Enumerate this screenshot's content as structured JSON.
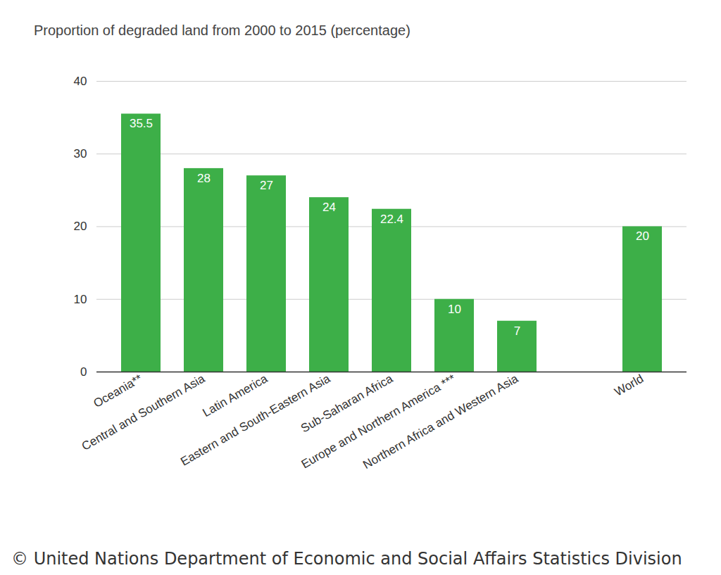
{
  "chart_data": {
    "type": "bar",
    "title": "Proportion of degraded land from 2000 to 2015 (percentage)",
    "caption": "© United Nations Department of Economic and Social Affairs Statistics Division",
    "categories": [
      "Oceania**",
      "Central and Southern Asia",
      "Latin America",
      "Eastern and South-Eastern Asia",
      "Sub-Saharan Africa",
      "Europe and Northern America ***",
      "Northern Africa and Western Asia",
      null,
      "World"
    ],
    "values": [
      35.5,
      28,
      27,
      24,
      22.4,
      10,
      7,
      null,
      20
    ],
    "color": "#3daf48",
    "ylim": [
      0,
      40
    ],
    "yticks": [
      0,
      10,
      20,
      30,
      40
    ],
    "grid": true,
    "data_labels": true
  }
}
